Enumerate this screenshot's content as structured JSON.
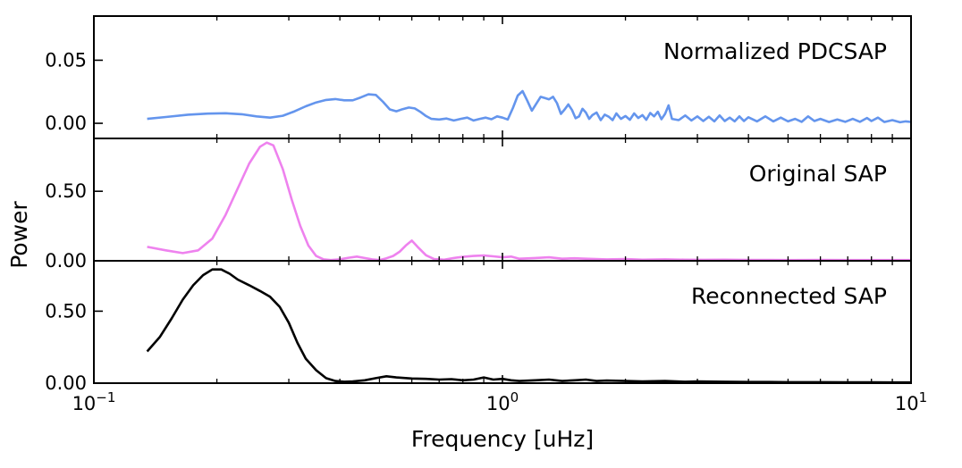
{
  "chart_data": {
    "type": "line",
    "layout": "3 vertically stacked panels sharing a log x-axis",
    "xlabel": "Frequency [uHz]",
    "ylabel": "Power",
    "x_scale": "log",
    "xlim": [
      0.1,
      10
    ],
    "x_ticks": [
      {
        "value": 0.1,
        "base": "10",
        "exp": "−1"
      },
      {
        "value": 1,
        "base": "10",
        "exp": "0"
      },
      {
        "value": 10,
        "base": "10",
        "exp": "1"
      }
    ],
    "grid": false,
    "legend": "none",
    "panels": [
      {
        "annotation": "Normalized PDCSAP",
        "color": "#6495ED",
        "ylim": [
          -0.012,
          0.085
        ],
        "y_ticks": [
          {
            "value": 0,
            "label": "0.00"
          },
          {
            "value": 0.05,
            "label": "0.05"
          }
        ],
        "series": [
          {
            "x": [
              0.135,
              0.15,
              0.17,
              0.19,
              0.21,
              0.23,
              0.25,
              0.27,
              0.29,
              0.31,
              0.33,
              0.35,
              0.37,
              0.39,
              0.41,
              0.43,
              0.45,
              0.47,
              0.49,
              0.51,
              0.53,
              0.55,
              0.57,
              0.59,
              0.61,
              0.63,
              0.65,
              0.67,
              0.7,
              0.73,
              0.76,
              0.79,
              0.82,
              0.85,
              0.88,
              0.91,
              0.94,
              0.97,
              1.0,
              1.03,
              1.06,
              1.09,
              1.12,
              1.15,
              1.18,
              1.21,
              1.24,
              1.27,
              1.3,
              1.33,
              1.36,
              1.39,
              1.42,
              1.45,
              1.48,
              1.51,
              1.54,
              1.57,
              1.6,
              1.63,
              1.66,
              1.7,
              1.74,
              1.78,
              1.82,
              1.86,
              1.9,
              1.95,
              2.0,
              2.05,
              2.1,
              2.15,
              2.2,
              2.25,
              2.3,
              2.35,
              2.4,
              2.45,
              2.5,
              2.55,
              2.6,
              2.7,
              2.8,
              2.9,
              3.0,
              3.1,
              3.2,
              3.3,
              3.4,
              3.5,
              3.6,
              3.7,
              3.8,
              3.9,
              4.0,
              4.2,
              4.4,
              4.6,
              4.8,
              5.0,
              5.2,
              5.4,
              5.6,
              5.8,
              6.0,
              6.3,
              6.6,
              6.9,
              7.2,
              7.5,
              7.8,
              8.0,
              8.3,
              8.6,
              9.0,
              9.4,
              9.7,
              10.0
            ],
            "y": [
              0.0035,
              0.005,
              0.0068,
              0.0077,
              0.008,
              0.0072,
              0.0055,
              0.0045,
              0.006,
              0.0095,
              0.0135,
              0.0165,
              0.0185,
              0.0192,
              0.0182,
              0.0182,
              0.0205,
              0.023,
              0.0225,
              0.017,
              0.011,
              0.0095,
              0.0112,
              0.0125,
              0.0118,
              0.009,
              0.0058,
              0.0035,
              0.003,
              0.0038,
              0.0022,
              0.0035,
              0.0045,
              0.0022,
              0.0035,
              0.0045,
              0.0032,
              0.0055,
              0.0045,
              0.003,
              0.012,
              0.022,
              0.0255,
              0.018,
              0.01,
              0.0155,
              0.021,
              0.02,
              0.019,
              0.021,
              0.016,
              0.0075,
              0.011,
              0.015,
              0.0105,
              0.004,
              0.0055,
              0.0115,
              0.0085,
              0.0035,
              0.0065,
              0.0085,
              0.0025,
              0.0068,
              0.0052,
              0.0025,
              0.0078,
              0.0035,
              0.0058,
              0.0028,
              0.0078,
              0.0042,
              0.0065,
              0.0028,
              0.0082,
              0.0055,
              0.0092,
              0.0032,
              0.0075,
              0.0142,
              0.0035,
              0.0025,
              0.0062,
              0.0022,
              0.0055,
              0.0018,
              0.0052,
              0.0015,
              0.0062,
              0.0018,
              0.0045,
              0.0015,
              0.0055,
              0.0018,
              0.0048,
              0.0015,
              0.0055,
              0.0015,
              0.0045,
              0.0015,
              0.0035,
              0.0012,
              0.0055,
              0.0018,
              0.0035,
              0.001,
              0.003,
              0.0012,
              0.0035,
              0.0012,
              0.0042,
              0.0018,
              0.0045,
              0.001,
              0.0025,
              0.0008,
              0.0015,
              0.001
            ]
          }
        ]
      },
      {
        "annotation": "Original SAP",
        "color": "#EE82EE",
        "ylim": [
          0,
          0.88
        ],
        "y_ticks": [
          {
            "value": 0,
            "label": "0.00"
          },
          {
            "value": 0.5,
            "label": "0.50"
          }
        ],
        "series": [
          {
            "x": [
              0.135,
              0.15,
              0.165,
              0.18,
              0.195,
              0.21,
              0.225,
              0.24,
              0.255,
              0.265,
              0.275,
              0.29,
              0.305,
              0.32,
              0.335,
              0.35,
              0.365,
              0.38,
              0.4,
              0.42,
              0.44,
              0.46,
              0.48,
              0.5,
              0.52,
              0.54,
              0.56,
              0.58,
              0.6,
              0.62,
              0.65,
              0.68,
              0.72,
              0.76,
              0.8,
              0.85,
              0.9,
              0.95,
              1.0,
              1.05,
              1.1,
              1.2,
              1.3,
              1.4,
              1.5,
              1.6,
              1.8,
              2.0,
              2.2,
              2.5,
              2.8,
              3.1,
              3.5,
              4.0,
              4.5,
              5.0,
              6.0,
              7.0,
              8.0,
              9.0,
              10.0
            ],
            "y": [
              0.1,
              0.075,
              0.055,
              0.075,
              0.16,
              0.33,
              0.52,
              0.7,
              0.82,
              0.85,
              0.83,
              0.66,
              0.44,
              0.25,
              0.11,
              0.035,
              0.01,
              0.005,
              0.01,
              0.022,
              0.03,
              0.02,
              0.01,
              0.005,
              0.018,
              0.035,
              0.065,
              0.11,
              0.145,
              0.1,
              0.04,
              0.012,
              0.008,
              0.02,
              0.028,
              0.035,
              0.038,
              0.032,
              0.025,
              0.03,
              0.015,
              0.02,
              0.025,
              0.015,
              0.018,
              0.015,
              0.01,
              0.012,
              0.008,
              0.01,
              0.008,
              0.007,
              0.008,
              0.006,
              0.006,
              0.005,
              0.006,
              0.005,
              0.005,
              0.005,
              0.005
            ]
          }
        ]
      },
      {
        "annotation": "Reconnected SAP",
        "color": "#000000",
        "ylim": [
          0,
          0.85
        ],
        "y_ticks": [
          {
            "value": 0,
            "label": "0.00"
          },
          {
            "value": 0.5,
            "label": "0.50"
          }
        ],
        "series": [
          {
            "x": [
              0.135,
              0.145,
              0.155,
              0.165,
              0.175,
              0.185,
              0.195,
              0.205,
              0.215,
              0.225,
              0.24,
              0.255,
              0.27,
              0.285,
              0.3,
              0.315,
              0.33,
              0.35,
              0.37,
              0.39,
              0.41,
              0.43,
              0.46,
              0.49,
              0.52,
              0.55,
              0.6,
              0.65,
              0.7,
              0.75,
              0.8,
              0.85,
              0.9,
              0.95,
              1.0,
              1.05,
              1.1,
              1.2,
              1.3,
              1.4,
              1.5,
              1.6,
              1.7,
              1.8,
              2.0,
              2.2,
              2.5,
              2.8,
              3.0,
              3.5,
              4.0,
              4.5,
              5.0,
              6.0,
              7.0,
              8.0,
              9.0,
              10.0
            ],
            "y": [
              0.22,
              0.32,
              0.45,
              0.58,
              0.68,
              0.75,
              0.79,
              0.79,
              0.76,
              0.72,
              0.68,
              0.64,
              0.6,
              0.53,
              0.42,
              0.28,
              0.17,
              0.09,
              0.035,
              0.015,
              0.01,
              0.012,
              0.02,
              0.035,
              0.048,
              0.04,
              0.032,
              0.03,
              0.025,
              0.028,
              0.02,
              0.025,
              0.04,
              0.025,
              0.03,
              0.02,
              0.015,
              0.02,
              0.025,
              0.015,
              0.02,
              0.025,
              0.015,
              0.018,
              0.015,
              0.012,
              0.015,
              0.01,
              0.012,
              0.01,
              0.008,
              0.008,
              0.007,
              0.007,
              0.006,
              0.006,
              0.005,
              0.005
            ]
          }
        ]
      }
    ]
  }
}
